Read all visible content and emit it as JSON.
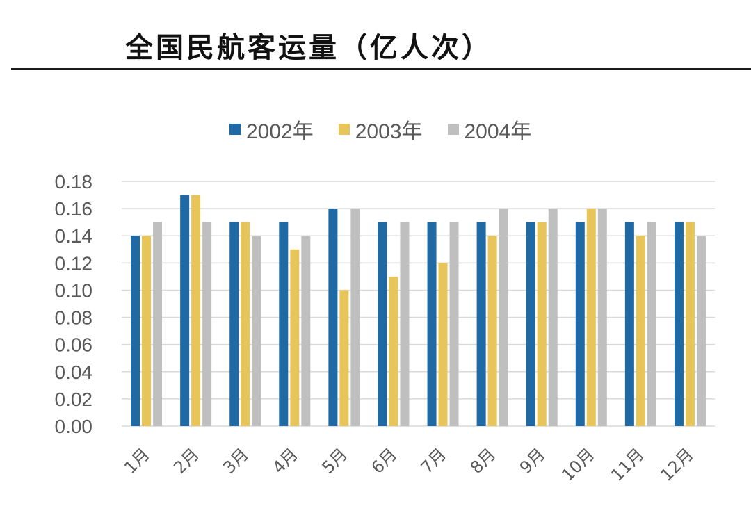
{
  "page": {
    "title": "全国民航客运量（亿人次）"
  },
  "chart_data": {
    "type": "bar",
    "title": "",
    "xlabel": "",
    "ylabel": "",
    "ylim": [
      0,
      0.18
    ],
    "yticks": [
      "0.00",
      "0.02",
      "0.04",
      "0.06",
      "0.08",
      "0.10",
      "0.12",
      "0.14",
      "0.16",
      "0.18"
    ],
    "grid": true,
    "legend_position": "top",
    "categories": [
      "1月",
      "2月",
      "3月",
      "4月",
      "5月",
      "6月",
      "7月",
      "8月",
      "9月",
      "10月",
      "11月",
      "12月"
    ],
    "series": [
      {
        "name": "2002年",
        "color": "#1f6aa5",
        "values": [
          0.14,
          0.17,
          0.15,
          0.15,
          0.16,
          0.15,
          0.15,
          0.15,
          0.15,
          0.15,
          0.15,
          0.15
        ]
      },
      {
        "name": "2003年",
        "color": "#e8c55a",
        "values": [
          0.14,
          0.17,
          0.15,
          0.13,
          0.1,
          0.11,
          0.12,
          0.14,
          0.15,
          0.16,
          0.14,
          0.15
        ]
      },
      {
        "name": "2004年",
        "color": "#bfbfbf",
        "values": [
          0.15,
          0.15,
          0.14,
          0.14,
          0.16,
          0.15,
          0.15,
          0.16,
          0.16,
          0.16,
          0.15,
          0.14
        ]
      }
    ]
  }
}
